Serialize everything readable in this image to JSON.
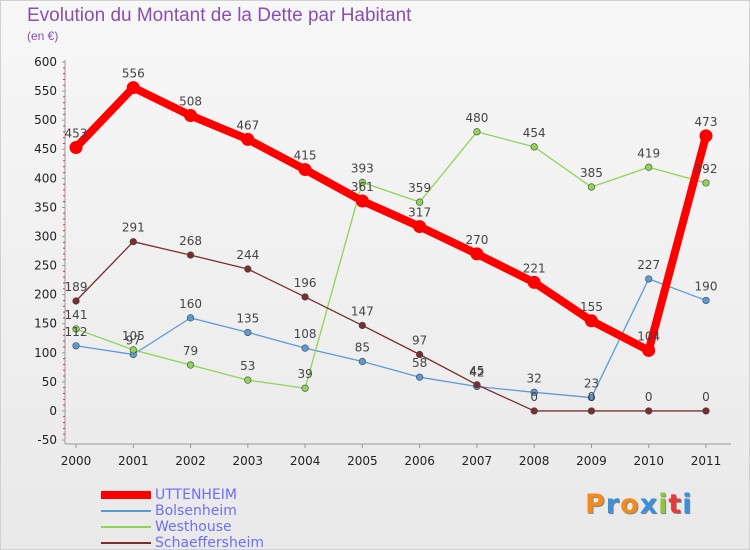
{
  "title": "Evolution du Montant de la Dette par Habitant",
  "subtitle": "(en €)",
  "brand": {
    "text": "Proxiti",
    "colors": [
      "#f08a1c",
      "#3c8fd8",
      "#f08a1c",
      "#3c8fd8",
      "#8cc63f",
      "#e53a3a",
      "#3c8fd8"
    ]
  },
  "chart_data": {
    "type": "line",
    "x": [
      "2000",
      "2001",
      "2002",
      "2003",
      "2004",
      "2005",
      "2006",
      "2007",
      "2008",
      "2009",
      "2010",
      "2011"
    ],
    "ylim": [
      -50,
      600
    ],
    "yticks": [
      "-50",
      "0",
      "50",
      "100",
      "150",
      "200",
      "250",
      "300",
      "350",
      "400",
      "450",
      "500",
      "550",
      "600"
    ],
    "grid": false,
    "legend_position": "bottom-left",
    "series": [
      {
        "name": "UTTENHEIM",
        "color": "#ff0000",
        "emphasis": true,
        "values": [
          453,
          556,
          508,
          467,
          415,
          361,
          317,
          270,
          221,
          155,
          104,
          473
        ]
      },
      {
        "name": "Bolsenheim",
        "color": "#5b9bd5",
        "values": [
          112,
          97,
          160,
          135,
          108,
          85,
          58,
          42,
          32,
          23,
          227,
          190
        ]
      },
      {
        "name": "Westhouse",
        "color": "#8ed455",
        "values": [
          141,
          105,
          79,
          53,
          39,
          393,
          359,
          480,
          454,
          385,
          419,
          392
        ]
      },
      {
        "name": "Schaeffersheim",
        "color": "#7a2e2e",
        "values": [
          189,
          291,
          268,
          244,
          196,
          147,
          97,
          45,
          0,
          0,
          0,
          0
        ]
      }
    ]
  }
}
